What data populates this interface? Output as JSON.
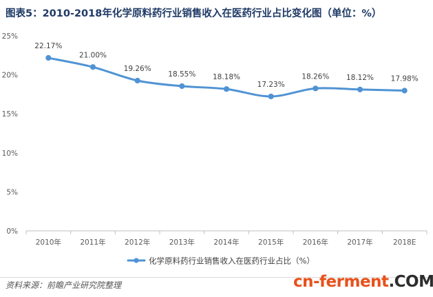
{
  "header": {
    "title": "图表5：2010-2018年化学原料药行业销售收入在医药行业占比变化图（单位：%）"
  },
  "footer": {
    "source": "资料来源：前瞻产业研究院整理",
    "logo_part1": "cn-ferment",
    "logo_part2": ".COM"
  },
  "colors": {
    "series": "#4f93d4",
    "title": "#1f3a66",
    "axis": "#bfbfbf",
    "logo_accent": "#e8501a"
  },
  "chart_data": {
    "type": "line",
    "categories": [
      "2010年",
      "2011年",
      "2012年",
      "2013年",
      "2014年",
      "2015年",
      "2016年",
      "2017年",
      "2018E"
    ],
    "series": [
      {
        "name": "化学原料药行业销售收入在医药行业占比（%）",
        "values": [
          22.17,
          21.0,
          19.26,
          18.55,
          18.18,
          17.23,
          18.26,
          18.12,
          17.98
        ],
        "labels": [
          "22.17%",
          "21.00%",
          "19.26%",
          "18.55%",
          "18.18%",
          "17.23%",
          "18.26%",
          "18.12%",
          "17.98%"
        ]
      }
    ],
    "ylim": [
      0,
      25
    ],
    "yticks": [
      0,
      5,
      10,
      15,
      20,
      25
    ],
    "ytick_labels": [
      "0%",
      "5%",
      "10%",
      "15%",
      "20%",
      "25%"
    ],
    "grid": false,
    "smooth": true,
    "legend_position": "bottom"
  }
}
